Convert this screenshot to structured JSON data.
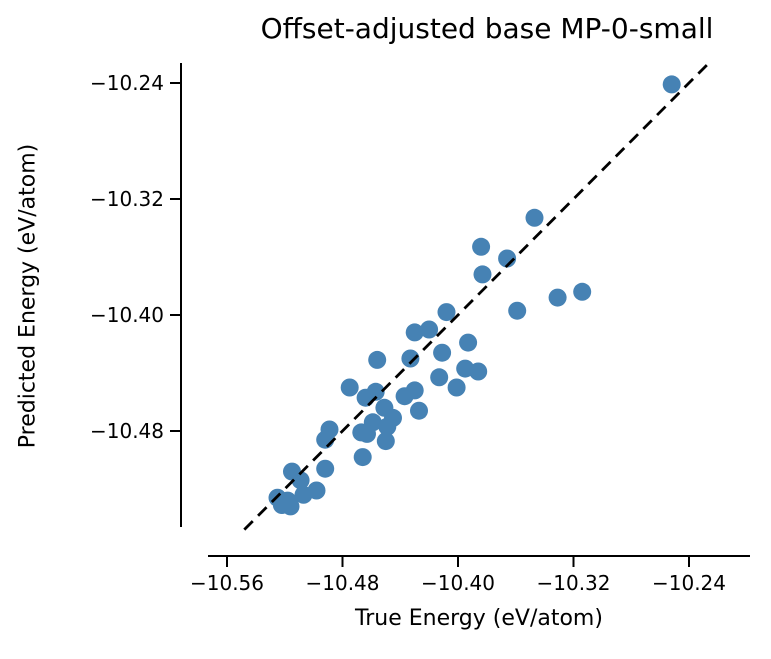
{
  "figure": {
    "title": "Offset-adjusted base MP-0-small",
    "xlabel": "True Energy (eV/atom)",
    "ylabel": "Predicted Energy (eV/atom)"
  },
  "chart_data": {
    "type": "scatter",
    "title": "Offset-adjusted base MP-0-small",
    "xlabel": "True Energy (eV/atom)",
    "ylabel": "Predicted Energy (eV/atom)",
    "xlim": [
      -10.573,
      -10.198
    ],
    "ylim": [
      -10.546,
      -10.226
    ],
    "grid": false,
    "legend_position": "none",
    "x_ticks": {
      "values": [
        -10.56,
        -10.48,
        -10.4,
        -10.32,
        -10.24
      ],
      "labels": [
        "−10.56",
        "−10.48",
        "−10.40",
        "−10.32",
        "−10.24"
      ]
    },
    "y_ticks": {
      "values": [
        -10.24,
        -10.32,
        -10.4,
        -10.48
      ],
      "labels": [
        "−10.24",
        "−10.32",
        "−10.40",
        "−10.48"
      ]
    },
    "marker": {
      "color": "#4682b4",
      "radius_px": 9
    },
    "identity_line": {
      "style": "dashed",
      "color": "#000000",
      "x": [
        -10.548,
        -10.2255
      ],
      "y": [
        -10.548,
        -10.2255
      ]
    },
    "points": [
      [
        -10.252,
        -10.241
      ],
      [
        -10.347,
        -10.333
      ],
      [
        -10.384,
        -10.353
      ],
      [
        -10.366,
        -10.361
      ],
      [
        -10.383,
        -10.372
      ],
      [
        -10.331,
        -10.388
      ],
      [
        -10.314,
        -10.384
      ],
      [
        -10.359,
        -10.397
      ],
      [
        -10.408,
        -10.398
      ],
      [
        -10.43,
        -10.412
      ],
      [
        -10.42,
        -10.41
      ],
      [
        -10.393,
        -10.419
      ],
      [
        -10.411,
        -10.426
      ],
      [
        -10.456,
        -10.431
      ],
      [
        -10.433,
        -10.43
      ],
      [
        -10.475,
        -10.45
      ],
      [
        -10.395,
        -10.437
      ],
      [
        -10.386,
        -10.439
      ],
      [
        -10.413,
        -10.443
      ],
      [
        -10.401,
        -10.45
      ],
      [
        -10.437,
        -10.456
      ],
      [
        -10.43,
        -10.452
      ],
      [
        -10.427,
        -10.466
      ],
      [
        -10.464,
        -10.457
      ],
      [
        -10.451,
        -10.464
      ],
      [
        -10.445,
        -10.471
      ],
      [
        -10.459,
        -10.474
      ],
      [
        -10.467,
        -10.481
      ],
      [
        -10.463,
        -10.482
      ],
      [
        -10.449,
        -10.477
      ],
      [
        -10.457,
        -10.453
      ],
      [
        -10.489,
        -10.479
      ],
      [
        -10.492,
        -10.486
      ],
      [
        -10.45,
        -10.487
      ],
      [
        -10.466,
        -10.498
      ],
      [
        -10.492,
        -10.506
      ],
      [
        -10.515,
        -10.508
      ],
      [
        -10.509,
        -10.514
      ],
      [
        -10.498,
        -10.521
      ],
      [
        -10.507,
        -10.524
      ],
      [
        -10.518,
        -10.528
      ],
      [
        -10.525,
        -10.526
      ],
      [
        -10.522,
        -10.531
      ],
      [
        -10.516,
        -10.532
      ]
    ]
  }
}
